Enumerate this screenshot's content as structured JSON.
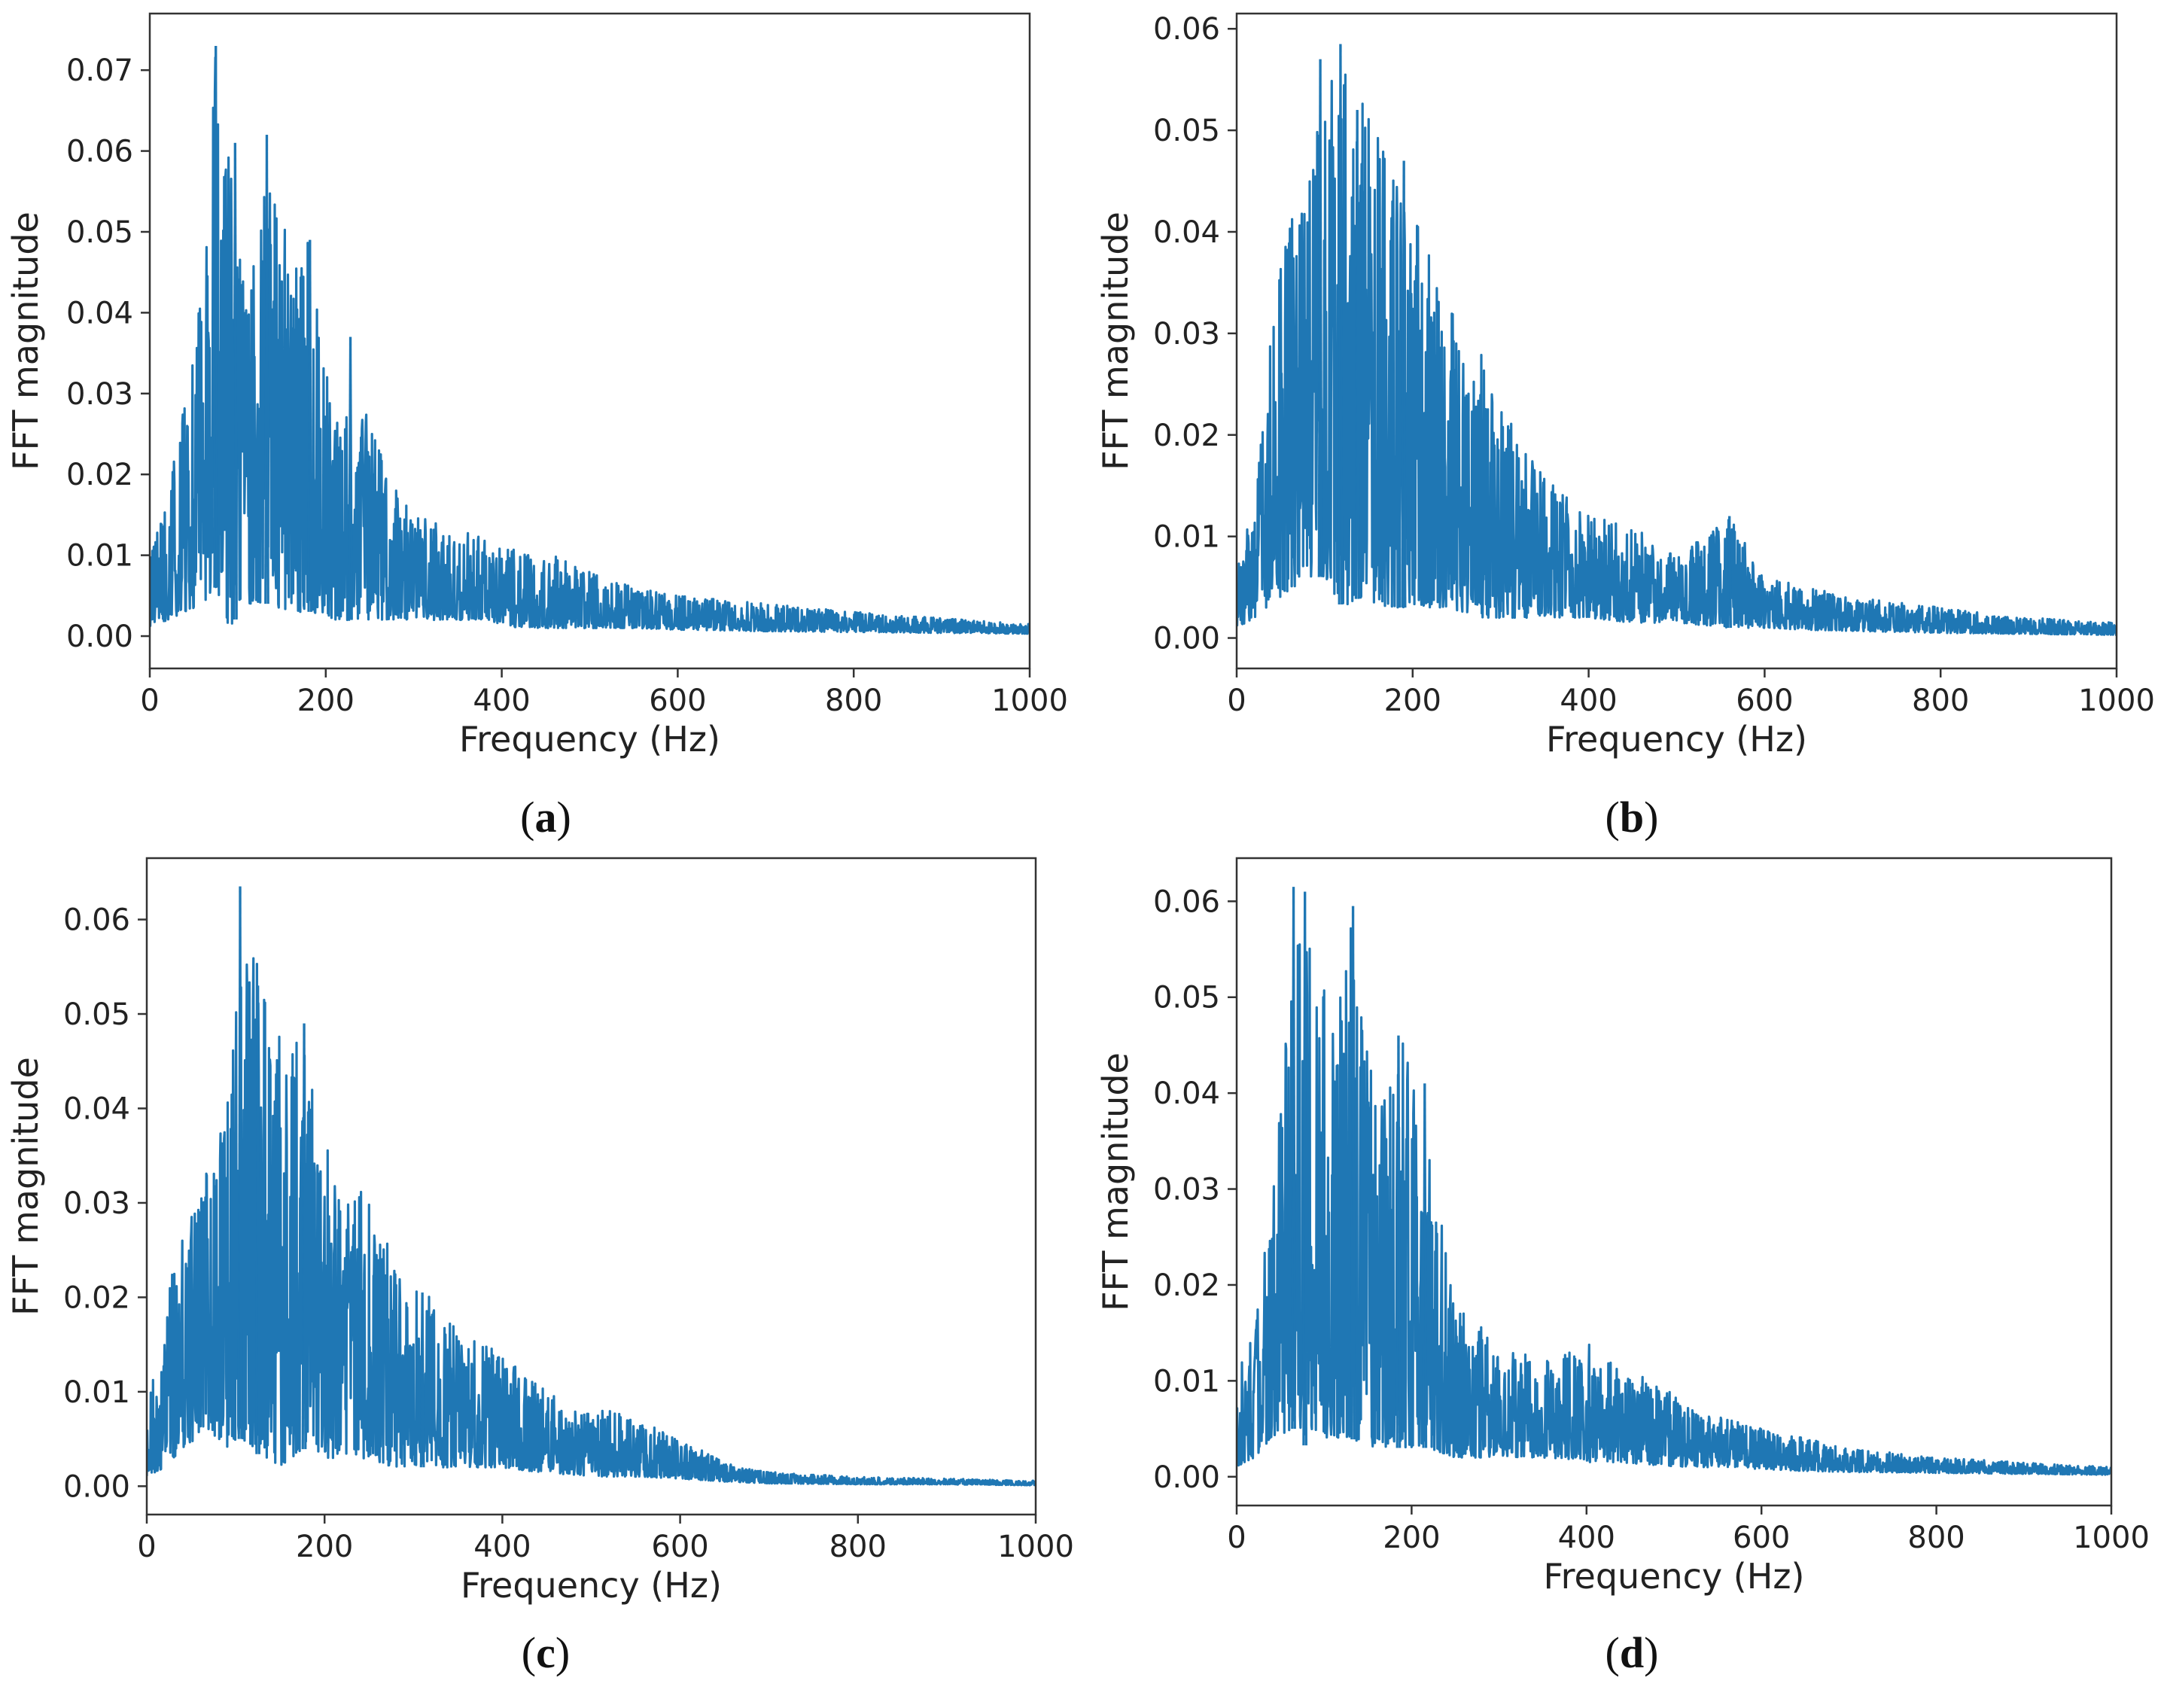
{
  "chart_data": [
    {
      "type": "line",
      "panel_label": "a",
      "title": "",
      "xlabel": "Frequency (Hz)",
      "ylabel": "FFT magnitude",
      "xlim": [
        0,
        1000
      ],
      "ylim": [
        -0.004,
        0.077
      ],
      "xticks": [
        0,
        200,
        400,
        600,
        800,
        1000
      ],
      "xtick_labels": [
        "0",
        "200",
        "400",
        "600",
        "800",
        "1000"
      ],
      "yticks": [
        0.0,
        0.01,
        0.02,
        0.03,
        0.04,
        0.05,
        0.06,
        0.07
      ],
      "ytick_labels": [
        "0.00",
        "0.01",
        "0.02",
        "0.03",
        "0.04",
        "0.05",
        "0.06",
        "0.07"
      ],
      "grid": false,
      "series": [
        {
          "name": "FFT magnitude",
          "color": "#1f77b4",
          "envelope": {
            "x": [
              0,
              20,
              40,
              60,
              75,
              90,
              110,
              135,
              160,
              185,
              210,
              240,
              270,
              300,
              340,
              380,
              420,
              460,
              500,
              550,
              600,
              650,
              700,
              800,
              900,
              1000
            ],
            "upper": [
              0.012,
              0.017,
              0.03,
              0.043,
              0.073,
              0.061,
              0.04,
              0.062,
              0.048,
              0.049,
              0.026,
              0.03,
              0.02,
              0.015,
              0.014,
              0.012,
              0.011,
              0.01,
              0.008,
              0.006,
              0.005,
              0.0045,
              0.004,
              0.003,
              0.0022,
              0.0015
            ],
            "lower": [
              0.001,
              0.002,
              0.003,
              0.004,
              0.006,
              0.001,
              0.004,
              0.004,
              0.003,
              0.003,
              0.002,
              0.002,
              0.002,
              0.002,
              0.002,
              0.002,
              0.001,
              0.001,
              0.001,
              0.001,
              0.0008,
              0.0007,
              0.0006,
              0.0005,
              0.0004,
              0.0003
            ]
          },
          "peaks": [
            {
              "x": 75,
              "y": 0.073
            },
            {
              "x": 97,
              "y": 0.061
            },
            {
              "x": 133,
              "y": 0.062
            },
            {
              "x": 182,
              "y": 0.049
            },
            {
              "x": 228,
              "y": 0.037
            }
          ]
        }
      ]
    },
    {
      "type": "line",
      "panel_label": "b",
      "title": "",
      "xlabel": "Frequency (Hz)",
      "ylabel": "FFT magnitude",
      "xlim": [
        0,
        1000
      ],
      "ylim": [
        -0.003,
        0.0615
      ],
      "xticks": [
        0,
        200,
        400,
        600,
        800,
        1000
      ],
      "xtick_labels": [
        "0",
        "200",
        "400",
        "600",
        "800",
        "1000"
      ],
      "yticks": [
        0.0,
        0.01,
        0.02,
        0.03,
        0.04,
        0.05,
        0.06
      ],
      "ytick_labels": [
        "0.00",
        "0.01",
        "0.02",
        "0.03",
        "0.04",
        "0.05",
        "0.06"
      ],
      "grid": false,
      "series": [
        {
          "name": "FFT magnitude",
          "color": "#1f77b4",
          "envelope": {
            "x": [
              0,
              20,
              50,
              80,
              100,
              120,
              140,
              170,
              200,
              240,
              280,
              320,
              360,
              400,
              450,
              500,
              560,
              600,
              650,
              700,
              800,
              900,
              1000
            ],
            "upper": [
              0.008,
              0.013,
              0.043,
              0.045,
              0.057,
              0.058,
              0.053,
              0.05,
              0.042,
              0.033,
              0.028,
              0.02,
              0.015,
              0.012,
              0.011,
              0.008,
              0.012,
              0.006,
              0.005,
              0.004,
              0.003,
              0.002,
              0.0015
            ],
            "lower": [
              0.001,
              0.002,
              0.004,
              0.006,
              0.006,
              0.003,
              0.004,
              0.003,
              0.003,
              0.003,
              0.002,
              0.002,
              0.002,
              0.002,
              0.0015,
              0.0015,
              0.001,
              0.001,
              0.0008,
              0.0007,
              0.0005,
              0.0004,
              0.0003
            ]
          },
          "peaks": [
            {
              "x": 95,
              "y": 0.057
            },
            {
              "x": 118,
              "y": 0.0585
            },
            {
              "x": 137,
              "y": 0.052
            },
            {
              "x": 190,
              "y": 0.047
            },
            {
              "x": 560,
              "y": 0.012
            }
          ]
        }
      ]
    },
    {
      "type": "line",
      "panel_label": "c",
      "title": "",
      "xlabel": "Frequency (Hz)",
      "ylabel": "FFT magnitude",
      "xlim": [
        0,
        1000
      ],
      "ylim": [
        -0.003,
        0.0665
      ],
      "xticks": [
        0,
        200,
        400,
        600,
        800,
        1000
      ],
      "xtick_labels": [
        "0",
        "200",
        "400",
        "600",
        "800",
        "1000"
      ],
      "yticks": [
        0.0,
        0.01,
        0.02,
        0.03,
        0.04,
        0.05,
        0.06
      ],
      "ytick_labels": [
        "0.00",
        "0.01",
        "0.02",
        "0.03",
        "0.04",
        "0.05",
        "0.06"
      ],
      "grid": false,
      "series": [
        {
          "name": "FFT magnitude",
          "color": "#1f77b4",
          "envelope": {
            "x": [
              0,
              20,
              40,
              70,
              90,
              105,
              130,
              155,
              175,
              200,
              240,
              280,
              320,
              360,
              400,
              440,
              480,
              520,
              560,
              600,
              650,
              700,
              800,
              900,
              1000
            ],
            "upper": [
              0.008,
              0.019,
              0.028,
              0.034,
              0.041,
              0.063,
              0.053,
              0.046,
              0.049,
              0.036,
              0.032,
              0.024,
              0.02,
              0.016,
              0.014,
              0.011,
              0.008,
              0.008,
              0.007,
              0.005,
              0.0025,
              0.0015,
              0.001,
              0.0008,
              0.0006
            ],
            "lower": [
              0.001,
              0.002,
              0.004,
              0.006,
              0.004,
              0.005,
              0.003,
              0.002,
              0.004,
              0.003,
              0.003,
              0.002,
              0.002,
              0.002,
              0.002,
              0.0015,
              0.0012,
              0.001,
              0.001,
              0.0008,
              0.0005,
              0.0003,
              0.0002,
              0.0002,
              0.0001
            ]
          },
          "peaks": [
            {
              "x": 105,
              "y": 0.0635
            },
            {
              "x": 125,
              "y": 0.053
            },
            {
              "x": 177,
              "y": 0.049
            },
            {
              "x": 310,
              "y": 0.0205
            }
          ]
        }
      ]
    },
    {
      "type": "line",
      "panel_label": "d",
      "title": "",
      "xlabel": "Frequency (Hz)",
      "ylabel": "FFT magnitude",
      "xlim": [
        0,
        1000
      ],
      "ylim": [
        -0.003,
        0.0645
      ],
      "xticks": [
        0,
        200,
        400,
        600,
        800,
        1000
      ],
      "xtick_labels": [
        "0",
        "200",
        "400",
        "600",
        "800",
        "1000"
      ],
      "yticks": [
        0.0,
        0.01,
        0.02,
        0.03,
        0.04,
        0.05,
        0.06
      ],
      "ytick_labels": [
        "0.00",
        "0.01",
        "0.02",
        "0.03",
        "0.04",
        "0.05",
        "0.06"
      ],
      "grid": false,
      "series": [
        {
          "name": "FFT magnitude",
          "color": "#1f77b4",
          "envelope": {
            "x": [
              0,
              20,
              40,
              65,
              80,
              100,
              130,
              160,
              190,
              220,
              250,
              280,
              320,
              360,
              400,
              440,
              480,
              520,
              560,
              600,
              650,
              700,
              800,
              900,
              1000
            ],
            "upper": [
              0.011,
              0.015,
              0.03,
              0.0615,
              0.061,
              0.051,
              0.0595,
              0.04,
              0.046,
              0.034,
              0.018,
              0.016,
              0.013,
              0.012,
              0.014,
              0.011,
              0.01,
              0.007,
              0.006,
              0.005,
              0.004,
              0.003,
              0.002,
              0.0015,
              0.001
            ],
            "lower": [
              0.001,
              0.002,
              0.004,
              0.005,
              0.003,
              0.004,
              0.004,
              0.003,
              0.003,
              0.003,
              0.002,
              0.002,
              0.002,
              0.002,
              0.0015,
              0.0015,
              0.0012,
              0.001,
              0.001,
              0.0008,
              0.0006,
              0.0005,
              0.0004,
              0.0003,
              0.0002
            ]
          },
          "peaks": [
            {
              "x": 65,
              "y": 0.0615
            },
            {
              "x": 78,
              "y": 0.061
            },
            {
              "x": 133,
              "y": 0.0595
            },
            {
              "x": 185,
              "y": 0.046
            },
            {
              "x": 215,
              "y": 0.041
            }
          ]
        }
      ]
    }
  ]
}
